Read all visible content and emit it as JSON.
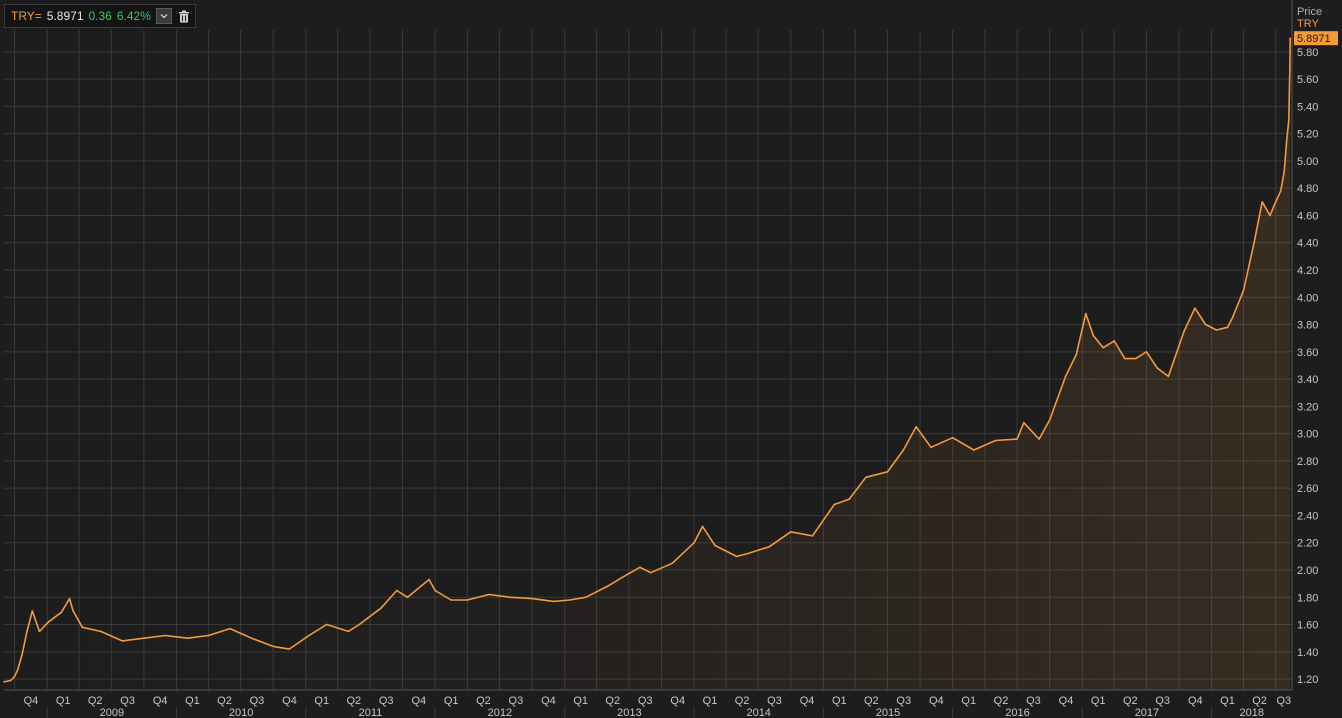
{
  "legend": {
    "symbol": "TRY=",
    "price": "5.8971",
    "change": "0.36",
    "change_pct": "6.42%",
    "dropdown_icon": "chevron-down-icon",
    "delete_icon": "trash-icon"
  },
  "axis": {
    "title": "Price",
    "series_label": "TRY",
    "last_value_tag": "5.8971"
  },
  "colors": {
    "background": "#1d1d1e",
    "grid": "#3a3a3a",
    "line": "#f39a3c",
    "axis_text": "#c8c8c8",
    "change_positive": "#46c35a"
  },
  "chart_data": {
    "type": "area",
    "title": "",
    "xlabel": "",
    "ylabel": "Price",
    "ylim": [
      1.12,
      5.96
    ],
    "y_ticks": [
      1.2,
      1.4,
      1.6,
      1.8,
      2.0,
      2.2,
      2.4,
      2.6,
      2.8,
      3.0,
      3.2,
      3.4,
      3.6,
      3.8,
      4.0,
      4.2,
      4.4,
      4.6,
      4.8,
      5.0,
      5.2,
      5.4,
      5.6,
      5.8
    ],
    "quarter_ticks": [
      "Q4",
      "Q1",
      "Q2",
      "Q3",
      "Q4",
      "Q1",
      "Q2",
      "Q3",
      "Q4",
      "Q1",
      "Q2",
      "Q3",
      "Q4",
      "Q1",
      "Q2",
      "Q3",
      "Q4",
      "Q1",
      "Q2",
      "Q3",
      "Q4",
      "Q1",
      "Q2",
      "Q3",
      "Q4",
      "Q1",
      "Q2",
      "Q3",
      "Q4",
      "Q1",
      "Q2",
      "Q3",
      "Q4",
      "Q1",
      "Q2",
      "Q3",
      "Q4",
      "Q1",
      "Q2",
      "Q3"
    ],
    "year_ticks": [
      "2009",
      "2010",
      "2011",
      "2012",
      "2013",
      "2014",
      "2015",
      "2016",
      "2017",
      "2018"
    ],
    "grid": true,
    "series": [
      {
        "name": "TRY",
        "x": [
          "2008-09-01",
          "2008-09-20",
          "2008-10-01",
          "2008-10-10",
          "2008-10-22",
          "2008-11-05",
          "2008-11-20",
          "2008-12-10",
          "2009-01-05",
          "2009-02-10",
          "2009-03-05",
          "2009-03-15",
          "2009-04-10",
          "2009-06-01",
          "2009-08-01",
          "2009-10-01",
          "2009-12-01",
          "2010-02-01",
          "2010-04-01",
          "2010-06-01",
          "2010-08-01",
          "2010-10-01",
          "2010-11-15",
          "2011-01-10",
          "2011-03-01",
          "2011-05-01",
          "2011-06-01",
          "2011-08-01",
          "2011-09-15",
          "2011-10-15",
          "2011-12-15",
          "2012-01-01",
          "2012-02-15",
          "2012-04-01",
          "2012-06-01",
          "2012-08-01",
          "2012-10-01",
          "2012-12-01",
          "2013-01-15",
          "2013-03-01",
          "2013-05-01",
          "2013-06-15",
          "2013-08-01",
          "2013-09-01",
          "2013-11-01",
          "2014-01-01",
          "2014-01-25",
          "2014-03-01",
          "2014-05-01",
          "2014-06-01",
          "2014-08-01",
          "2014-10-01",
          "2014-12-01",
          "2015-02-01",
          "2015-03-15",
          "2015-05-01",
          "2015-07-01",
          "2015-08-15",
          "2015-09-20",
          "2015-11-01",
          "2016-01-01",
          "2016-03-01",
          "2016-05-01",
          "2016-07-01",
          "2016-07-20",
          "2016-09-01",
          "2016-10-01",
          "2016-11-15",
          "2016-12-15",
          "2017-01-11",
          "2017-02-01",
          "2017-03-01",
          "2017-04-01",
          "2017-05-01",
          "2017-06-01",
          "2017-07-01",
          "2017-08-01",
          "2017-09-01",
          "2017-10-15",
          "2017-11-15",
          "2017-12-15",
          "2018-01-15",
          "2018-02-15",
          "2018-03-01",
          "2018-04-01",
          "2018-05-01",
          "2018-05-24",
          "2018-06-15",
          "2018-07-01",
          "2018-07-15",
          "2018-07-25",
          "2018-08-01",
          "2018-08-07",
          "2018-08-10",
          "2018-08-11"
        ],
        "values": [
          1.18,
          1.19,
          1.22,
          1.27,
          1.38,
          1.55,
          1.7,
          1.55,
          1.62,
          1.69,
          1.79,
          1.7,
          1.58,
          1.55,
          1.48,
          1.5,
          1.52,
          1.5,
          1.52,
          1.57,
          1.5,
          1.44,
          1.42,
          1.52,
          1.6,
          1.55,
          1.6,
          1.72,
          1.85,
          1.8,
          1.93,
          1.85,
          1.78,
          1.78,
          1.82,
          1.8,
          1.79,
          1.77,
          1.78,
          1.8,
          1.88,
          1.95,
          2.02,
          1.98,
          2.05,
          2.2,
          2.32,
          2.18,
          2.1,
          2.12,
          2.17,
          2.28,
          2.25,
          2.48,
          2.52,
          2.68,
          2.72,
          2.88,
          3.05,
          2.9,
          2.97,
          2.88,
          2.95,
          2.96,
          3.08,
          2.96,
          3.1,
          3.42,
          3.58,
          3.88,
          3.72,
          3.63,
          3.68,
          3.55,
          3.55,
          3.6,
          3.48,
          3.42,
          3.75,
          3.92,
          3.8,
          3.76,
          3.78,
          3.85,
          4.05,
          4.4,
          4.7,
          4.6,
          4.7,
          4.78,
          4.92,
          5.15,
          5.3,
          5.7,
          5.9
        ]
      }
    ]
  }
}
